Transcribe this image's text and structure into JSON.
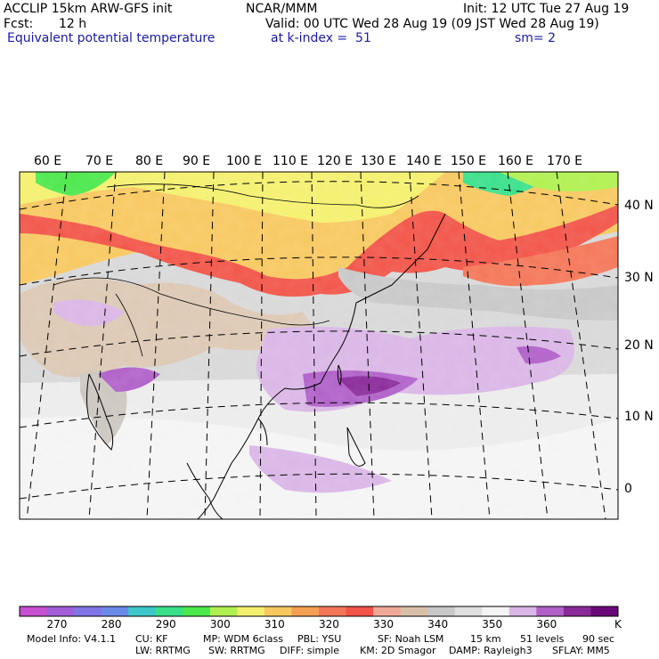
{
  "header": {
    "model": "ACCLIP 15km ARW-GFS init",
    "org": "NCAR/MMM",
    "init": "Init: 12 UTC Tue 27 Aug 19",
    "fcst_label": "Fcst:",
    "fcst_value": "12 h",
    "valid": "Valid: 00 UTC Wed 28 Aug 19 (09 JST Wed 28 Aug 19)",
    "field": "Equivalent potential temperature",
    "level": "at k-index =  51",
    "smoothing": "sm= 2"
  },
  "map": {
    "lon_labels": [
      "60 E",
      "70 E",
      "80 E",
      "90 E",
      "100 E",
      "110 E",
      "120 E",
      "130 E",
      "140 E",
      "150 E",
      "160 E",
      "170 E"
    ],
    "lat_labels": [
      "40 N",
      "30 N",
      "20 N",
      "10 N",
      "0"
    ]
  },
  "colorbar": {
    "unit": "K",
    "tick_labels": [
      "270",
      "280",
      "290",
      "300",
      "310",
      "320",
      "330",
      "340",
      "350",
      "360"
    ],
    "colors": [
      "#c84fd0",
      "#a25ed8",
      "#7f75e6",
      "#6a8ae8",
      "#3cc8c8",
      "#38e08a",
      "#4be84b",
      "#b0f050",
      "#f4f06e",
      "#f8c860",
      "#f4a050",
      "#f47658",
      "#f25448",
      "#f0a896",
      "#d8c0a8",
      "#c8c8c8",
      "#e0e0e0",
      "#f4f4f4",
      "#dab6e6",
      "#b060c8",
      "#8a2a9a",
      "#6a0a7a"
    ]
  },
  "footer": {
    "line1": [
      "Model Info: V4.1.1",
      "CU: KF",
      "MP: WDM 6class",
      "PBL: YSU",
      "SF: Noah LSM",
      "15 km",
      "51 levels",
      "90 sec"
    ],
    "line2": [
      "LW: RRTMG",
      "SW: RRTMG",
      "DIFF: simple",
      "KM: 2D Smagor",
      "DAMP: Rayleigh3",
      "SFLAY: MM5"
    ]
  }
}
